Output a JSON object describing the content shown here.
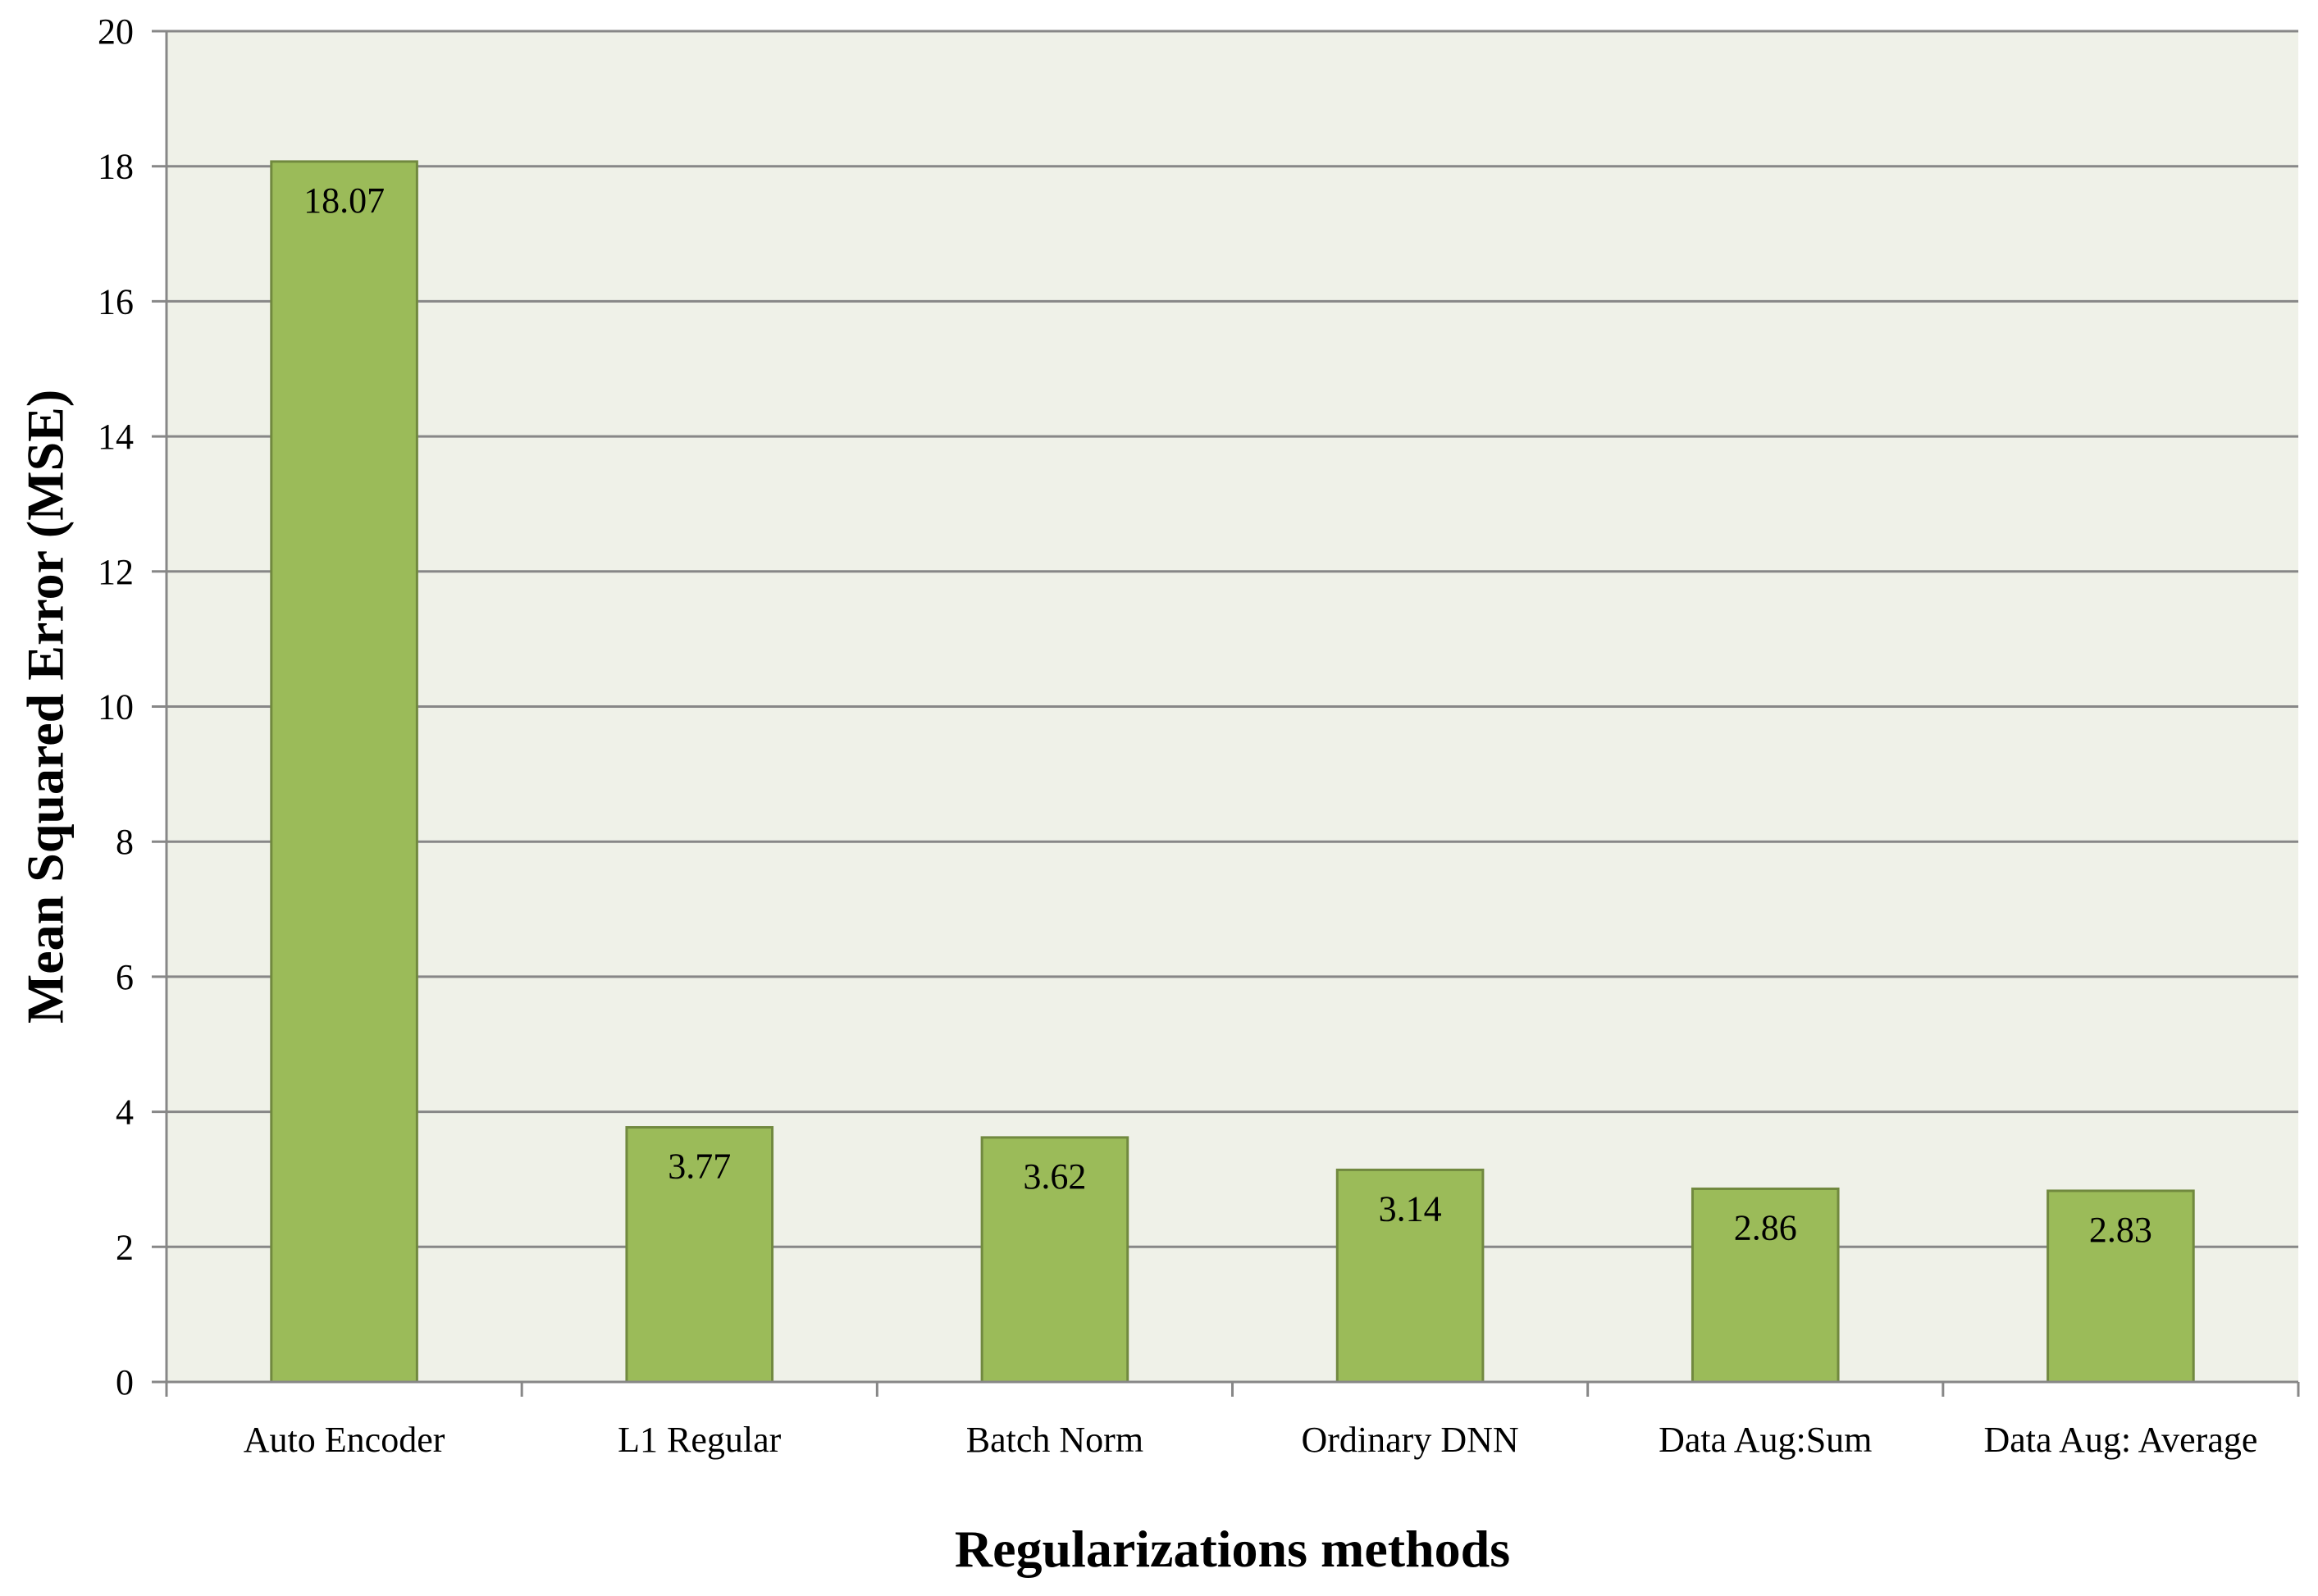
{
  "chart_data": {
    "type": "bar",
    "title": "",
    "xlabel": "Regularizations methods",
    "ylabel": "Mean Squared Error (MSE)",
    "categories": [
      "Auto Encoder",
      "L1 Regular",
      "Batch Norm",
      "Ordinary DNN",
      "Data Aug:Sum",
      "Data Aug: Average"
    ],
    "values": [
      18.07,
      3.77,
      3.62,
      3.14,
      2.86,
      2.83
    ],
    "data_labels": [
      "18.07",
      "3.77",
      "3.62",
      "3.14",
      "2.86",
      "2.83"
    ],
    "ylim": [
      0,
      20
    ],
    "yticks": [
      0,
      2,
      4,
      6,
      8,
      10,
      12,
      14,
      16,
      18,
      20
    ],
    "grid": true,
    "legend": "none",
    "colors": {
      "bar_fill": "#9bbb59",
      "bar_stroke": "#71893f",
      "plot_background": "#eff1e8",
      "gridline": "#878787",
      "axis": "#878787"
    }
  }
}
